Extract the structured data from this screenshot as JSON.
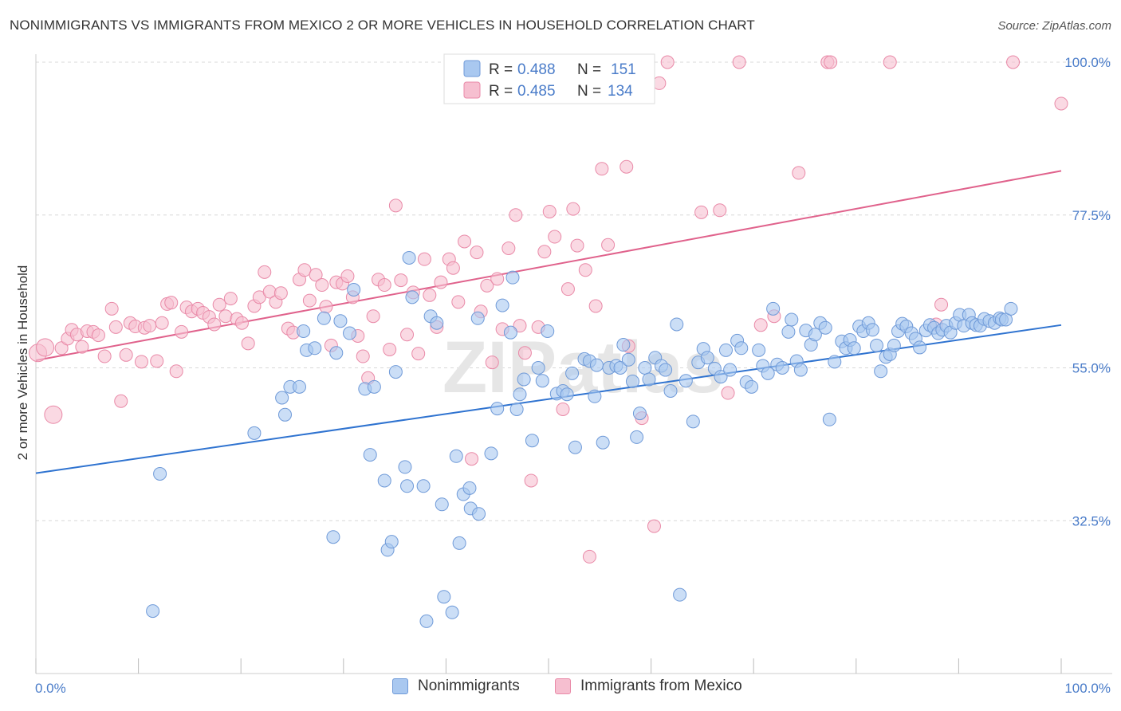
{
  "header": {
    "title": "NONIMMIGRANTS VS IMMIGRANTS FROM MEXICO 2 OR MORE VEHICLES IN HOUSEHOLD CORRELATION CHART",
    "source": "Source: ZipAtlas.com"
  },
  "watermark": "ZIPatlas",
  "colors": {
    "blue_fill": "#a9c8f0",
    "blue_stroke": "#6f9ad8",
    "blue_line": "#2f73d0",
    "pink_fill": "#f6bfd0",
    "pink_stroke": "#e98aa8",
    "pink_line": "#e0628c",
    "tick_text": "#4a7cc9",
    "grid": "#d8d8d8"
  },
  "legend_top": {
    "rows": [
      {
        "r_label": "R = ",
        "r_value": "0.488",
        "n_label": "N = ",
        "n_value": "151"
      },
      {
        "r_label": "R = ",
        "r_value": "0.485",
        "n_label": "N = ",
        "n_value": "134"
      }
    ]
  },
  "legend_bottom": {
    "items": [
      "Nonimmigrants",
      "Immigrants from Mexico"
    ]
  },
  "chart_data": {
    "type": "scatter",
    "title": "NONIMMIGRANTS VS IMMIGRANTS FROM MEXICO 2 OR MORE VEHICLES IN HOUSEHOLD CORRELATION CHART",
    "xlabel": "",
    "ylabel": "2 or more Vehicles in Household",
    "xlim": [
      0,
      100
    ],
    "ylim": [
      10,
      100
    ],
    "x_tick_labels": [
      "0.0%",
      "100.0%"
    ],
    "y_ticks": [
      32.5,
      55.0,
      77.5,
      100.0
    ],
    "y_tick_labels": [
      "32.5%",
      "55.0%",
      "77.5%",
      "100.0%"
    ],
    "grid": true,
    "legend_position": "top-center",
    "series": [
      {
        "name": "Nonimmigrants",
        "r": 0.488,
        "n": 151,
        "trend": {
          "x": [
            0,
            100
          ],
          "y": [
            39.5,
            61.3
          ]
        },
        "points": [
          [
            12.1,
            39.4
          ],
          [
            11.4,
            19.2
          ],
          [
            21.3,
            45.4
          ],
          [
            24.0,
            50.6
          ],
          [
            24.3,
            48.1
          ],
          [
            24.8,
            52.2
          ],
          [
            25.7,
            52.2
          ],
          [
            26.1,
            60.4
          ],
          [
            26.4,
            57.6
          ],
          [
            27.2,
            57.9
          ],
          [
            28.1,
            62.3
          ],
          [
            29.3,
            57.2
          ],
          [
            29.7,
            61.9
          ],
          [
            30.6,
            60.1
          ],
          [
            31.0,
            66.5
          ],
          [
            29.0,
            30.1
          ],
          [
            32.1,
            51.9
          ],
          [
            33.0,
            52.2
          ],
          [
            32.6,
            42.2
          ],
          [
            34.0,
            38.4
          ],
          [
            34.3,
            28.2
          ],
          [
            34.7,
            29.4
          ],
          [
            35.1,
            54.4
          ],
          [
            36.0,
            40.4
          ],
          [
            36.4,
            71.2
          ],
          [
            36.7,
            65.4
          ],
          [
            36.2,
            37.6
          ],
          [
            37.8,
            37.6
          ],
          [
            38.1,
            17.7
          ],
          [
            38.5,
            62.6
          ],
          [
            39.1,
            61.6
          ],
          [
            39.6,
            34.9
          ],
          [
            39.8,
            21.3
          ],
          [
            40.6,
            19.0
          ],
          [
            41.0,
            42.0
          ],
          [
            41.3,
            29.2
          ],
          [
            41.7,
            36.4
          ],
          [
            42.3,
            37.3
          ],
          [
            42.4,
            34.3
          ],
          [
            43.2,
            33.5
          ],
          [
            43.1,
            62.3
          ],
          [
            44.4,
            42.4
          ],
          [
            45.0,
            49.0
          ],
          [
            45.5,
            64.2
          ],
          [
            46.5,
            68.3
          ],
          [
            46.3,
            60.2
          ],
          [
            46.9,
            48.9
          ],
          [
            47.2,
            51.1
          ],
          [
            47.6,
            53.3
          ],
          [
            48.4,
            44.3
          ],
          [
            49.0,
            55.0
          ],
          [
            49.4,
            53.1
          ],
          [
            49.9,
            60.4
          ],
          [
            50.8,
            51.2
          ],
          [
            51.4,
            51.6
          ],
          [
            51.8,
            51.1
          ],
          [
            52.3,
            54.2
          ],
          [
            52.6,
            43.3
          ],
          [
            53.5,
            56.3
          ],
          [
            54.0,
            56.0
          ],
          [
            54.5,
            50.8
          ],
          [
            54.7,
            55.4
          ],
          [
            55.3,
            44.0
          ],
          [
            55.9,
            55.0
          ],
          [
            56.6,
            55.3
          ],
          [
            57.0,
            55.0
          ],
          [
            57.3,
            58.4
          ],
          [
            57.8,
            56.2
          ],
          [
            58.2,
            53.0
          ],
          [
            58.6,
            44.8
          ],
          [
            58.9,
            48.3
          ],
          [
            59.4,
            55.0
          ],
          [
            59.8,
            53.3
          ],
          [
            60.4,
            56.5
          ],
          [
            61.0,
            55.3
          ],
          [
            61.4,
            54.7
          ],
          [
            61.9,
            51.6
          ],
          [
            62.5,
            61.4
          ],
          [
            62.8,
            21.6
          ],
          [
            63.4,
            53.1
          ],
          [
            64.1,
            47.1
          ],
          [
            64.6,
            55.8
          ],
          [
            65.1,
            57.8
          ],
          [
            65.5,
            56.5
          ],
          [
            66.2,
            54.9
          ],
          [
            66.8,
            53.7
          ],
          [
            67.3,
            57.6
          ],
          [
            67.7,
            54.7
          ],
          [
            68.4,
            59.0
          ],
          [
            68.8,
            57.9
          ],
          [
            69.3,
            52.9
          ],
          [
            69.8,
            52.2
          ],
          [
            70.5,
            57.6
          ],
          [
            70.9,
            55.3
          ],
          [
            71.4,
            54.2
          ],
          [
            71.9,
            63.7
          ],
          [
            72.3,
            55.5
          ],
          [
            72.8,
            55.0
          ],
          [
            73.4,
            60.3
          ],
          [
            73.7,
            62.1
          ],
          [
            74.2,
            56.0
          ],
          [
            74.6,
            54.7
          ],
          [
            75.1,
            60.5
          ],
          [
            75.6,
            58.4
          ],
          [
            76.0,
            59.9
          ],
          [
            76.5,
            61.6
          ],
          [
            77.0,
            60.9
          ],
          [
            77.4,
            47.4
          ],
          [
            77.9,
            55.9
          ],
          [
            78.6,
            58.9
          ],
          [
            79.0,
            57.9
          ],
          [
            79.4,
            59.1
          ],
          [
            79.8,
            57.9
          ],
          [
            80.3,
            61.1
          ],
          [
            80.7,
            60.4
          ],
          [
            81.2,
            61.6
          ],
          [
            81.6,
            60.6
          ],
          [
            82.0,
            58.3
          ],
          [
            82.4,
            54.5
          ],
          [
            82.9,
            56.6
          ],
          [
            83.3,
            57.0
          ],
          [
            83.7,
            58.3
          ],
          [
            84.1,
            60.4
          ],
          [
            84.5,
            61.5
          ],
          [
            84.9,
            61.1
          ],
          [
            85.4,
            60.1
          ],
          [
            85.8,
            59.3
          ],
          [
            86.2,
            58.0
          ],
          [
            86.8,
            60.5
          ],
          [
            87.2,
            61.3
          ],
          [
            87.6,
            60.9
          ],
          [
            88.0,
            60.1
          ],
          [
            88.4,
            60.6
          ],
          [
            88.8,
            61.2
          ],
          [
            89.2,
            60.2
          ],
          [
            89.7,
            61.6
          ],
          [
            90.1,
            62.8
          ],
          [
            90.5,
            61.2
          ],
          [
            91.0,
            62.8
          ],
          [
            91.3,
            61.6
          ],
          [
            91.7,
            61.3
          ],
          [
            92.1,
            61.2
          ],
          [
            92.5,
            62.2
          ],
          [
            93.0,
            61.9
          ],
          [
            93.5,
            61.6
          ],
          [
            94.0,
            62.3
          ],
          [
            94.2,
            62.1
          ],
          [
            94.6,
            62.1
          ],
          [
            95.1,
            63.7
          ]
        ]
      },
      {
        "name": "Immigrants from Mexico",
        "r": 0.485,
        "n": 134,
        "trend": {
          "x": [
            0,
            100
          ],
          "y": [
            56.1,
            84.0
          ]
        },
        "points": [
          [
            0.2,
            57.2
          ],
          [
            0.9,
            58.0
          ],
          [
            1.7,
            48.1
          ],
          [
            2.5,
            57.9
          ],
          [
            3.1,
            59.3
          ],
          [
            3.5,
            60.6
          ],
          [
            4.0,
            59.9
          ],
          [
            4.5,
            58.1
          ],
          [
            5.0,
            60.4
          ],
          [
            5.6,
            60.3
          ],
          [
            6.1,
            59.8
          ],
          [
            6.7,
            56.7
          ],
          [
            7.4,
            63.7
          ],
          [
            7.8,
            61.0
          ],
          [
            8.3,
            50.1
          ],
          [
            8.8,
            56.9
          ],
          [
            9.2,
            61.6
          ],
          [
            9.7,
            61.1
          ],
          [
            10.3,
            55.9
          ],
          [
            10.6,
            60.9
          ],
          [
            11.1,
            61.2
          ],
          [
            11.8,
            56.0
          ],
          [
            12.3,
            61.6
          ],
          [
            12.8,
            64.4
          ],
          [
            13.2,
            64.6
          ],
          [
            13.7,
            54.5
          ],
          [
            14.2,
            60.3
          ],
          [
            14.7,
            63.9
          ],
          [
            15.2,
            63.3
          ],
          [
            15.8,
            63.7
          ],
          [
            16.3,
            63.1
          ],
          [
            16.9,
            62.5
          ],
          [
            17.4,
            61.4
          ],
          [
            17.9,
            64.3
          ],
          [
            18.5,
            62.6
          ],
          [
            19.0,
            65.2
          ],
          [
            19.6,
            62.2
          ],
          [
            20.1,
            61.6
          ],
          [
            20.7,
            58.6
          ],
          [
            21.3,
            64.1
          ],
          [
            21.8,
            65.4
          ],
          [
            22.3,
            69.1
          ],
          [
            22.8,
            66.2
          ],
          [
            23.4,
            64.7
          ],
          [
            23.9,
            66.0
          ],
          [
            24.6,
            60.8
          ],
          [
            25.1,
            60.2
          ],
          [
            25.7,
            68.0
          ],
          [
            26.2,
            69.4
          ],
          [
            26.7,
            64.9
          ],
          [
            27.3,
            68.7
          ],
          [
            27.9,
            67.2
          ],
          [
            28.3,
            64.0
          ],
          [
            28.8,
            58.3
          ],
          [
            29.3,
            67.6
          ],
          [
            29.9,
            67.4
          ],
          [
            30.4,
            68.5
          ],
          [
            30.9,
            65.4
          ],
          [
            31.4,
            59.7
          ],
          [
            31.9,
            56.7
          ],
          [
            32.4,
            53.5
          ],
          [
            32.9,
            62.6
          ],
          [
            33.4,
            68.0
          ],
          [
            34.0,
            67.2
          ],
          [
            34.5,
            57.7
          ],
          [
            35.1,
            78.9
          ],
          [
            35.6,
            67.9
          ],
          [
            36.2,
            59.9
          ],
          [
            36.8,
            66.1
          ],
          [
            37.3,
            57.1
          ],
          [
            37.9,
            71.0
          ],
          [
            38.4,
            65.7
          ],
          [
            39.1,
            61.0
          ],
          [
            39.5,
            67.6
          ],
          [
            40.3,
            71.0
          ],
          [
            40.7,
            69.7
          ],
          [
            41.2,
            64.7
          ],
          [
            41.8,
            73.6
          ],
          [
            42.5,
            41.6
          ],
          [
            43.0,
            72.0
          ],
          [
            43.4,
            63.3
          ],
          [
            44.0,
            67.1
          ],
          [
            44.5,
            55.8
          ],
          [
            45.0,
            68.1
          ],
          [
            45.5,
            60.7
          ],
          [
            46.1,
            72.6
          ],
          [
            46.8,
            77.5
          ],
          [
            47.2,
            61.2
          ],
          [
            47.7,
            57.2
          ],
          [
            48.3,
            38.4
          ],
          [
            49.0,
            61.0
          ],
          [
            49.6,
            72.1
          ],
          [
            50.1,
            78.0
          ],
          [
            50.6,
            74.3
          ],
          [
            51.4,
            48.9
          ],
          [
            51.9,
            66.6
          ],
          [
            52.4,
            78.4
          ],
          [
            52.8,
            73.0
          ],
          [
            53.6,
            69.4
          ],
          [
            54.0,
            27.2
          ],
          [
            54.6,
            64.1
          ],
          [
            55.2,
            84.3
          ],
          [
            55.8,
            73.1
          ],
          [
            57.6,
            84.6
          ],
          [
            57.8,
            58.2
          ],
          [
            59.1,
            47.6
          ],
          [
            60.3,
            31.7
          ],
          [
            60.8,
            96.9
          ],
          [
            61.6,
            100.0
          ],
          [
            64.9,
            77.9
          ],
          [
            66.7,
            78.2
          ],
          [
            67.5,
            51.3
          ],
          [
            68.6,
            100.0
          ],
          [
            70.7,
            61.3
          ],
          [
            72.0,
            62.6
          ],
          [
            74.4,
            83.7
          ],
          [
            77.2,
            100.0
          ],
          [
            77.5,
            100.0
          ],
          [
            83.3,
            100.0
          ],
          [
            87.8,
            61.4
          ],
          [
            88.3,
            64.3
          ],
          [
            95.3,
            100.0
          ],
          [
            100.0,
            93.9
          ]
        ]
      }
    ]
  }
}
